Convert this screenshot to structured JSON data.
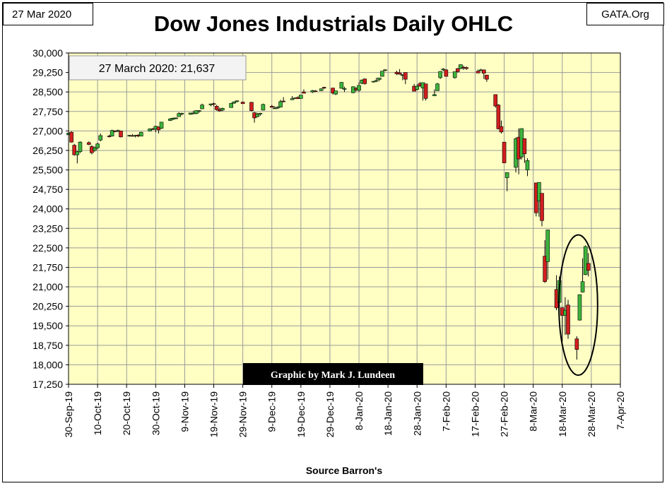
{
  "header": {
    "date_label": "27 Mar 2020",
    "site_label": "GATA.Org",
    "title": "Dow Jones Industrials Daily OHLC"
  },
  "annotations": {
    "last_close": "27 March 2020: 21,637",
    "credit": "Graphic by Mark J. Lundeen",
    "source": "Source Barron's"
  },
  "colors": {
    "plot_background": "#FFFFC4",
    "grid": "#9A9A9A",
    "up_candle": "#3CB43C",
    "down_candle": "#D21E1E",
    "credit_background": "#000000",
    "credit_text": "#FFFFFF"
  },
  "chart_data": {
    "type": "candlestick",
    "title": "Dow Jones Industrials Daily OHLC",
    "xlabel": "Source Barron's",
    "ylabel": "",
    "ylim": [
      17250,
      30000
    ],
    "xlim": [
      "2019-09-30",
      "2020-04-07"
    ],
    "grid": true,
    "y_ticks": [
      "30,000",
      "29,250",
      "28,500",
      "27,750",
      "27,000",
      "26,250",
      "25,500",
      "24,750",
      "24,000",
      "23,250",
      "22,500",
      "21,750",
      "21,000",
      "20,250",
      "19,500",
      "18,750",
      "18,000",
      "17,250"
    ],
    "x_ticks": [
      "30-Sep-19",
      "10-Oct-19",
      "20-Oct-19",
      "30-Oct-19",
      "9-Nov-19",
      "19-Nov-19",
      "29-Nov-19",
      "9-Dec-19",
      "19-Dec-19",
      "29-Dec-19",
      "8-Jan-20",
      "18-Jan-20",
      "28-Jan-20",
      "7-Feb-20",
      "17-Feb-20",
      "27-Feb-20",
      "8-Mar-20",
      "18-Mar-20",
      "28-Mar-20",
      "7-Apr-20"
    ],
    "highlight": {
      "shape": "ellipse",
      "from": "2020-03-20",
      "to": "2020-03-27",
      "y_range": [
        17600,
        23000
      ]
    },
    "ohlc": [
      {
        "date": "2019-09-30",
        "o": 26850,
        "h": 27000,
        "l": 26820,
        "c": 26920
      },
      {
        "date": "2019-10-01",
        "o": 26950,
        "h": 26990,
        "l": 26550,
        "c": 26570
      },
      {
        "date": "2019-10-02",
        "o": 26450,
        "h": 26500,
        "l": 26050,
        "c": 26080
      },
      {
        "date": "2019-10-03",
        "o": 26080,
        "h": 26230,
        "l": 25750,
        "c": 26200
      },
      {
        "date": "2019-10-04",
        "o": 26200,
        "h": 26600,
        "l": 26150,
        "c": 26570
      },
      {
        "date": "2019-10-07",
        "o": 26550,
        "h": 26600,
        "l": 26450,
        "c": 26480
      },
      {
        "date": "2019-10-08",
        "o": 26400,
        "h": 26450,
        "l": 26100,
        "c": 26160
      },
      {
        "date": "2019-10-09",
        "o": 26250,
        "h": 26400,
        "l": 26200,
        "c": 26350
      },
      {
        "date": "2019-10-10",
        "o": 26350,
        "h": 26550,
        "l": 26300,
        "c": 26500
      },
      {
        "date": "2019-10-11",
        "o": 26650,
        "h": 26900,
        "l": 26600,
        "c": 26820
      },
      {
        "date": "2019-10-14",
        "o": 26800,
        "h": 26850,
        "l": 26750,
        "c": 26790
      },
      {
        "date": "2019-10-15",
        "o": 26800,
        "h": 27050,
        "l": 26790,
        "c": 27020
      },
      {
        "date": "2019-10-16",
        "o": 27000,
        "h": 27020,
        "l": 26950,
        "c": 26970
      },
      {
        "date": "2019-10-17",
        "o": 27000,
        "h": 27050,
        "l": 26950,
        "c": 27020
      },
      {
        "date": "2019-10-18",
        "o": 27000,
        "h": 27010,
        "l": 26750,
        "c": 26770
      },
      {
        "date": "2019-10-21",
        "o": 26800,
        "h": 26850,
        "l": 26780,
        "c": 26830
      },
      {
        "date": "2019-10-22",
        "o": 26820,
        "h": 26880,
        "l": 26790,
        "c": 26800
      },
      {
        "date": "2019-10-23",
        "o": 26800,
        "h": 26850,
        "l": 26750,
        "c": 26830
      },
      {
        "date": "2019-10-24",
        "o": 26840,
        "h": 26880,
        "l": 26760,
        "c": 26800
      },
      {
        "date": "2019-10-25",
        "o": 26800,
        "h": 26970,
        "l": 26790,
        "c": 26950
      },
      {
        "date": "2019-10-28",
        "o": 27000,
        "h": 27100,
        "l": 26980,
        "c": 27080
      },
      {
        "date": "2019-10-29",
        "o": 27080,
        "h": 27120,
        "l": 27040,
        "c": 27070
      },
      {
        "date": "2019-10-30",
        "o": 27070,
        "h": 27200,
        "l": 26950,
        "c": 27180
      },
      {
        "date": "2019-10-31",
        "o": 27150,
        "h": 27180,
        "l": 26900,
        "c": 27040
      },
      {
        "date": "2019-11-01",
        "o": 27100,
        "h": 27350,
        "l": 27080,
        "c": 27340
      },
      {
        "date": "2019-11-04",
        "o": 27400,
        "h": 27500,
        "l": 27380,
        "c": 27460
      },
      {
        "date": "2019-11-05",
        "o": 27450,
        "h": 27520,
        "l": 27420,
        "c": 27490
      },
      {
        "date": "2019-11-06",
        "o": 27490,
        "h": 27520,
        "l": 27450,
        "c": 27500
      },
      {
        "date": "2019-11-07",
        "o": 27550,
        "h": 27720,
        "l": 27540,
        "c": 27670
      },
      {
        "date": "2019-11-08",
        "o": 27650,
        "h": 27700,
        "l": 27600,
        "c": 27680
      },
      {
        "date": "2019-11-11",
        "o": 27640,
        "h": 27700,
        "l": 27620,
        "c": 27690
      },
      {
        "date": "2019-11-12",
        "o": 27690,
        "h": 27780,
        "l": 27640,
        "c": 27690
      },
      {
        "date": "2019-11-13",
        "o": 27670,
        "h": 27800,
        "l": 27640,
        "c": 27780
      },
      {
        "date": "2019-11-14",
        "o": 27770,
        "h": 27800,
        "l": 27700,
        "c": 27780
      },
      {
        "date": "2019-11-15",
        "o": 27850,
        "h": 28050,
        "l": 27840,
        "c": 28000
      },
      {
        "date": "2019-11-18",
        "o": 28000,
        "h": 28050,
        "l": 27950,
        "c": 28040
      },
      {
        "date": "2019-11-19",
        "o": 28050,
        "h": 28090,
        "l": 27950,
        "c": 28030
      },
      {
        "date": "2019-11-20",
        "o": 27950,
        "h": 28000,
        "l": 27780,
        "c": 27820
      },
      {
        "date": "2019-11-21",
        "o": 27820,
        "h": 27900,
        "l": 27740,
        "c": 27770
      },
      {
        "date": "2019-11-22",
        "o": 27800,
        "h": 27900,
        "l": 27760,
        "c": 27870
      },
      {
        "date": "2019-11-25",
        "o": 27900,
        "h": 28080,
        "l": 27890,
        "c": 28060
      },
      {
        "date": "2019-11-26",
        "o": 28070,
        "h": 28130,
        "l": 28040,
        "c": 28120
      },
      {
        "date": "2019-11-27",
        "o": 28130,
        "h": 28170,
        "l": 28100,
        "c": 28160
      },
      {
        "date": "2019-11-29",
        "o": 28110,
        "h": 28130,
        "l": 28040,
        "c": 28050
      },
      {
        "date": "2019-12-02",
        "o": 28100,
        "h": 28120,
        "l": 27750,
        "c": 27780
      },
      {
        "date": "2019-12-03",
        "o": 27700,
        "h": 27730,
        "l": 27320,
        "c": 27500
      },
      {
        "date": "2019-12-04",
        "o": 27550,
        "h": 27700,
        "l": 27520,
        "c": 27650
      },
      {
        "date": "2019-12-05",
        "o": 27650,
        "h": 27700,
        "l": 27580,
        "c": 27680
      },
      {
        "date": "2019-12-06",
        "o": 27800,
        "h": 28050,
        "l": 27790,
        "c": 28020
      },
      {
        "date": "2019-12-09",
        "o": 27950,
        "h": 28000,
        "l": 27900,
        "c": 27910
      },
      {
        "date": "2019-12-10",
        "o": 27880,
        "h": 27950,
        "l": 27850,
        "c": 27880
      },
      {
        "date": "2019-12-11",
        "o": 27880,
        "h": 27950,
        "l": 27840,
        "c": 27910
      },
      {
        "date": "2019-12-12",
        "o": 27920,
        "h": 28200,
        "l": 27900,
        "c": 28130
      },
      {
        "date": "2019-12-13",
        "o": 28150,
        "h": 28300,
        "l": 28100,
        "c": 28140
      },
      {
        "date": "2019-12-16",
        "o": 28200,
        "h": 28340,
        "l": 28190,
        "c": 28240
      },
      {
        "date": "2019-12-17",
        "o": 28260,
        "h": 28290,
        "l": 28230,
        "c": 28270
      },
      {
        "date": "2019-12-18",
        "o": 28290,
        "h": 28330,
        "l": 28230,
        "c": 28240
      },
      {
        "date": "2019-12-19",
        "o": 28250,
        "h": 28380,
        "l": 28240,
        "c": 28380
      },
      {
        "date": "2019-12-20",
        "o": 28500,
        "h": 28600,
        "l": 28450,
        "c": 28450
      },
      {
        "date": "2019-12-23",
        "o": 28500,
        "h": 28580,
        "l": 28460,
        "c": 28550
      },
      {
        "date": "2019-12-24",
        "o": 28540,
        "h": 28570,
        "l": 28500,
        "c": 28520
      },
      {
        "date": "2019-12-26",
        "o": 28550,
        "h": 28640,
        "l": 28540,
        "c": 28620
      },
      {
        "date": "2019-12-27",
        "o": 28680,
        "h": 28700,
        "l": 28610,
        "c": 28650
      },
      {
        "date": "2019-12-30",
        "o": 28650,
        "h": 28660,
        "l": 28400,
        "c": 28460
      },
      {
        "date": "2019-12-31",
        "o": 28420,
        "h": 28550,
        "l": 28380,
        "c": 28540
      },
      {
        "date": "2020-01-02",
        "o": 28640,
        "h": 28880,
        "l": 28630,
        "c": 28870
      },
      {
        "date": "2020-01-03",
        "o": 28600,
        "h": 28700,
        "l": 28500,
        "c": 28630
      },
      {
        "date": "2020-01-06",
        "o": 28470,
        "h": 28720,
        "l": 28450,
        "c": 28700
      },
      {
        "date": "2020-01-07",
        "o": 28640,
        "h": 28680,
        "l": 28520,
        "c": 28580
      },
      {
        "date": "2020-01-08",
        "o": 28560,
        "h": 28870,
        "l": 28500,
        "c": 28750
      },
      {
        "date": "2020-01-09",
        "o": 28830,
        "h": 28980,
        "l": 28800,
        "c": 28960
      },
      {
        "date": "2020-01-10",
        "o": 29000,
        "h": 29020,
        "l": 28780,
        "c": 28820
      },
      {
        "date": "2020-01-13",
        "o": 28900,
        "h": 28920,
        "l": 28860,
        "c": 28910
      },
      {
        "date": "2020-01-14",
        "o": 28920,
        "h": 29050,
        "l": 28880,
        "c": 28940
      },
      {
        "date": "2020-01-15",
        "o": 28980,
        "h": 29050,
        "l": 28920,
        "c": 29040
      },
      {
        "date": "2020-01-16",
        "o": 29100,
        "h": 29300,
        "l": 29090,
        "c": 29300
      },
      {
        "date": "2020-01-17",
        "o": 29330,
        "h": 29380,
        "l": 29300,
        "c": 29350
      },
      {
        "date": "2020-01-21",
        "o": 29260,
        "h": 29320,
        "l": 29150,
        "c": 29200
      },
      {
        "date": "2020-01-22",
        "o": 29230,
        "h": 29380,
        "l": 29180,
        "c": 29180
      },
      {
        "date": "2020-01-23",
        "o": 29150,
        "h": 29190,
        "l": 28950,
        "c": 29160
      },
      {
        "date": "2020-01-24",
        "o": 29250,
        "h": 29250,
        "l": 28800,
        "c": 28990
      },
      {
        "date": "2020-01-27",
        "o": 28720,
        "h": 28810,
        "l": 28580,
        "c": 28530
      },
      {
        "date": "2020-01-28",
        "o": 28600,
        "h": 28790,
        "l": 28560,
        "c": 28720
      },
      {
        "date": "2020-01-29",
        "o": 28820,
        "h": 28890,
        "l": 28700,
        "c": 28730
      },
      {
        "date": "2020-01-30",
        "o": 28650,
        "h": 28860,
        "l": 28170,
        "c": 28860
      },
      {
        "date": "2020-01-31",
        "o": 28810,
        "h": 28820,
        "l": 28170,
        "c": 28250
      },
      {
        "date": "2020-02-03",
        "o": 28350,
        "h": 28600,
        "l": 28340,
        "c": 28400
      },
      {
        "date": "2020-02-04",
        "o": 28550,
        "h": 28850,
        "l": 28540,
        "c": 28810
      },
      {
        "date": "2020-02-05",
        "o": 29050,
        "h": 29300,
        "l": 29000,
        "c": 29290
      },
      {
        "date": "2020-02-06",
        "o": 29350,
        "h": 29420,
        "l": 29300,
        "c": 29380
      },
      {
        "date": "2020-02-07",
        "o": 29350,
        "h": 29370,
        "l": 29130,
        "c": 29100
      },
      {
        "date": "2020-02-10",
        "o": 29050,
        "h": 29280,
        "l": 29010,
        "c": 29280
      },
      {
        "date": "2020-02-11",
        "o": 29400,
        "h": 29420,
        "l": 29250,
        "c": 29280
      },
      {
        "date": "2020-02-12",
        "o": 29400,
        "h": 29560,
        "l": 29380,
        "c": 29550
      },
      {
        "date": "2020-02-13",
        "o": 29450,
        "h": 29510,
        "l": 29350,
        "c": 29420
      },
      {
        "date": "2020-02-14",
        "o": 29440,
        "h": 29480,
        "l": 29350,
        "c": 29400
      },
      {
        "date": "2020-02-18",
        "o": 29300,
        "h": 29360,
        "l": 29220,
        "c": 29230
      },
      {
        "date": "2020-02-19",
        "o": 29320,
        "h": 29390,
        "l": 29300,
        "c": 29350
      },
      {
        "date": "2020-02-20",
        "o": 29350,
        "h": 29360,
        "l": 29000,
        "c": 29220
      },
      {
        "date": "2020-02-21",
        "o": 29150,
        "h": 29160,
        "l": 28890,
        "c": 28990
      },
      {
        "date": "2020-02-24",
        "o": 28400,
        "h": 28400,
        "l": 27900,
        "c": 27960
      },
      {
        "date": "2020-02-25",
        "o": 28000,
        "h": 28030,
        "l": 27060,
        "c": 27080
      },
      {
        "date": "2020-02-26",
        "o": 27170,
        "h": 27400,
        "l": 26900,
        "c": 26960
      },
      {
        "date": "2020-02-27",
        "o": 26570,
        "h": 26570,
        "l": 25770,
        "c": 25770
      },
      {
        "date": "2020-02-28",
        "o": 25200,
        "h": 25400,
        "l": 24680,
        "c": 25400
      },
      {
        "date": "2020-03-02",
        "o": 25600,
        "h": 26750,
        "l": 25400,
        "c": 26700
      },
      {
        "date": "2020-03-03",
        "o": 26760,
        "h": 27100,
        "l": 25330,
        "c": 25920
      },
      {
        "date": "2020-03-04",
        "o": 26000,
        "h": 27100,
        "l": 25900,
        "c": 27090
      },
      {
        "date": "2020-03-05",
        "o": 26700,
        "h": 26720,
        "l": 25770,
        "c": 26120
      },
      {
        "date": "2020-03-06",
        "o": 25500,
        "h": 25950,
        "l": 25260,
        "c": 25860
      },
      {
        "date": "2020-03-09",
        "o": 25000,
        "h": 25000,
        "l": 23710,
        "c": 23850
      },
      {
        "date": "2020-03-10",
        "o": 24300,
        "h": 25020,
        "l": 23700,
        "c": 25020
      },
      {
        "date": "2020-03-11",
        "o": 24600,
        "h": 24600,
        "l": 23330,
        "c": 23550
      },
      {
        "date": "2020-03-12",
        "o": 22180,
        "h": 22800,
        "l": 21150,
        "c": 21200
      },
      {
        "date": "2020-03-13",
        "o": 21970,
        "h": 23200,
        "l": 21280,
        "c": 23190
      },
      {
        "date": "2020-03-16",
        "o": 20900,
        "h": 21450,
        "l": 20100,
        "c": 20190
      },
      {
        "date": "2020-03-17",
        "o": 20400,
        "h": 21400,
        "l": 19900,
        "c": 21240
      },
      {
        "date": "2020-03-18",
        "o": 20200,
        "h": 20200,
        "l": 18900,
        "c": 19900
      },
      {
        "date": "2020-03-19",
        "o": 19900,
        "h": 20600,
        "l": 19150,
        "c": 20100
      },
      {
        "date": "2020-03-20",
        "o": 20300,
        "h": 20500,
        "l": 19000,
        "c": 19180
      },
      {
        "date": "2020-03-23",
        "o": 19000,
        "h": 19100,
        "l": 18200,
        "c": 18590
      },
      {
        "date": "2020-03-24",
        "o": 19720,
        "h": 20700,
        "l": 19700,
        "c": 20700
      },
      {
        "date": "2020-03-25",
        "o": 20800,
        "h": 22100,
        "l": 20780,
        "c": 21200
      },
      {
        "date": "2020-03-26",
        "o": 21470,
        "h": 22600,
        "l": 21450,
        "c": 22550
      },
      {
        "date": "2020-03-27",
        "o": 21900,
        "h": 22300,
        "l": 21400,
        "c": 21637
      }
    ]
  }
}
